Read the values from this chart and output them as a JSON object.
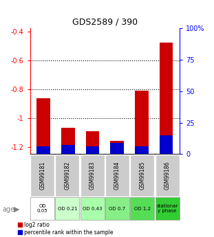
{
  "title": "GDS2589 / 390",
  "samples": [
    "GSM99181",
    "GSM99182",
    "GSM99183",
    "GSM99184",
    "GSM99185",
    "GSM99186"
  ],
  "log2_ratio": [
    -0.865,
    -1.07,
    -1.09,
    -1.16,
    -0.81,
    -0.48
  ],
  "percentile_rank": [
    6,
    7,
    6,
    9,
    6,
    15
  ],
  "ylim_left": [
    -1.25,
    -0.38
  ],
  "ylim_right": [
    0,
    100
  ],
  "yticks_left": [
    -1.2,
    -1.0,
    -0.8,
    -0.6,
    -0.4
  ],
  "ytick_labels_left": [
    "-1.2",
    "-1",
    "-0.8",
    "-0.6",
    "-0.4"
  ],
  "yticks_right": [
    0,
    25,
    50,
    75,
    100
  ],
  "ytick_labels_right": [
    "0",
    "25",
    "50",
    "75",
    "100%"
  ],
  "grid_yticks": [
    -0.6,
    -0.8,
    -1.0
  ],
  "red_color": "#cc0000",
  "blue_color": "#0000cc",
  "age_labels": [
    "OD\n0.05",
    "OD 0.21",
    "OD 0.43",
    "OD 0.7",
    "OD 1.2",
    "stationar\ny phase"
  ],
  "age_bg_colors": [
    "#ffffff",
    "#ccffcc",
    "#aaffaa",
    "#88ee88",
    "#55dd55",
    "#33cc33"
  ],
  "sample_bg_color": "#cccccc",
  "legend_red": "log2 ratio",
  "legend_blue": "percentile rank within the sample",
  "age_label": "age"
}
